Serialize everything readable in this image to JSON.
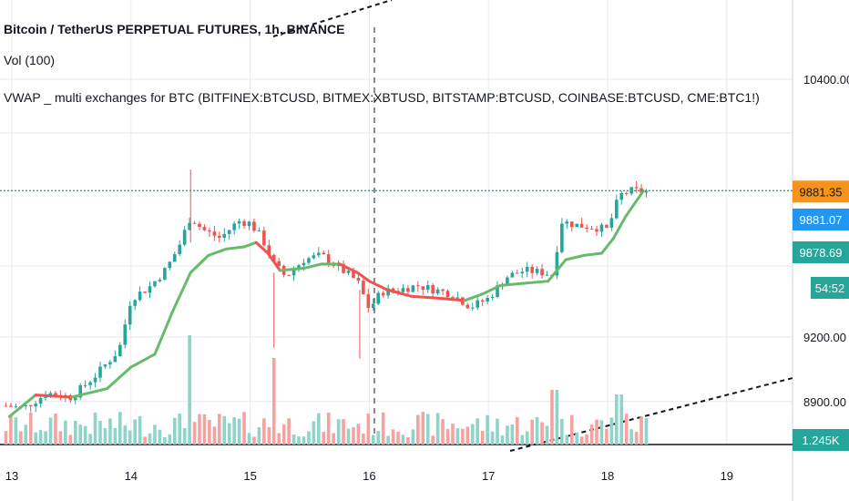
{
  "header": {
    "title": "Bitcoin / TetherUS PERPETUAL FUTURES, 1h, BINANCE",
    "vol_label": "Vol (100)",
    "vwap_label": "VWAP _ multi exchanges for BTC (BITFINEX:BTCUSD, BITMEX:XBTUSD, BITSTAMP:BTCUSD, COINBASE:BTCUSD, CME:BTC1!)"
  },
  "price_axis": {
    "ticks": [
      {
        "value": 10400,
        "label": "10400.00"
      },
      {
        "value": 9200,
        "label": "9200.00"
      },
      {
        "value": 8900,
        "label": "8900.00"
      }
    ]
  },
  "time_axis": {
    "ticks": [
      "13",
      "14",
      "15",
      "16",
      "17",
      "18",
      "19"
    ]
  },
  "tags": [
    {
      "name": "last-price-tag",
      "label": "9881.35",
      "color": "#f7931a",
      "text_color": "#131722"
    },
    {
      "name": "vwap-tag",
      "label": "9881.07",
      "color": "#2196f3",
      "text_color": "#ffffff"
    },
    {
      "name": "price-tag",
      "label": "9878.69",
      "color": "#26a69a",
      "text_color": "#ffffff"
    },
    {
      "name": "countdown-tag",
      "label": "54:52",
      "color": "#26a69a",
      "text_color": "#ffffff"
    },
    {
      "name": "volume-tag",
      "label": "1.245K",
      "color": "#26a69a",
      "text_color": "#ffffff"
    }
  ],
  "colors": {
    "up": "#26a69a",
    "down": "#ef5350",
    "vol_up": "#8fd3c9",
    "vol_down": "#f4a3a1",
    "vwap_up": "#66bb6a",
    "vwap_down": "#ef5350",
    "grid": "#e8e9ee",
    "dotted_line": "#131722",
    "last_line": "#26a69a"
  },
  "chart_data": {
    "type": "candlestick",
    "interval": "1h",
    "symbol": "Bitcoin / TetherUS PERPETUAL FUTURES",
    "exchange": "BINANCE",
    "x_range": [
      "13",
      "19"
    ],
    "y_range": [
      8800,
      10550
    ],
    "last_price": 9881.35,
    "vwap_last": 9881.07,
    "series": [
      {
        "name": "VWAP",
        "x": [
          12.98,
          13.2,
          13.5,
          13.8,
          14.0,
          14.2,
          14.35,
          14.5,
          14.65,
          14.8,
          14.95,
          15.05,
          15.15,
          15.25,
          15.45,
          15.6,
          15.75,
          15.9,
          16.0,
          16.15,
          16.35,
          16.6,
          16.8,
          16.95,
          17.1,
          17.3,
          17.5,
          17.65,
          17.8,
          17.95,
          18.05,
          18.15,
          18.3
        ],
        "y": [
          8830,
          8930,
          8920,
          8960,
          9060,
          9120,
          9320,
          9500,
          9580,
          9610,
          9620,
          9640,
          9590,
          9510,
          9520,
          9540,
          9540,
          9500,
          9460,
          9420,
          9390,
          9380,
          9370,
          9400,
          9440,
          9450,
          9460,
          9560,
          9580,
          9590,
          9660,
          9760,
          9880
        ]
      }
    ],
    "price_levels": {
      "day15_spike_high": 10000,
      "day16_low": 9170,
      "day18_high": 9920
    },
    "grid": true,
    "legend": "top-left"
  }
}
